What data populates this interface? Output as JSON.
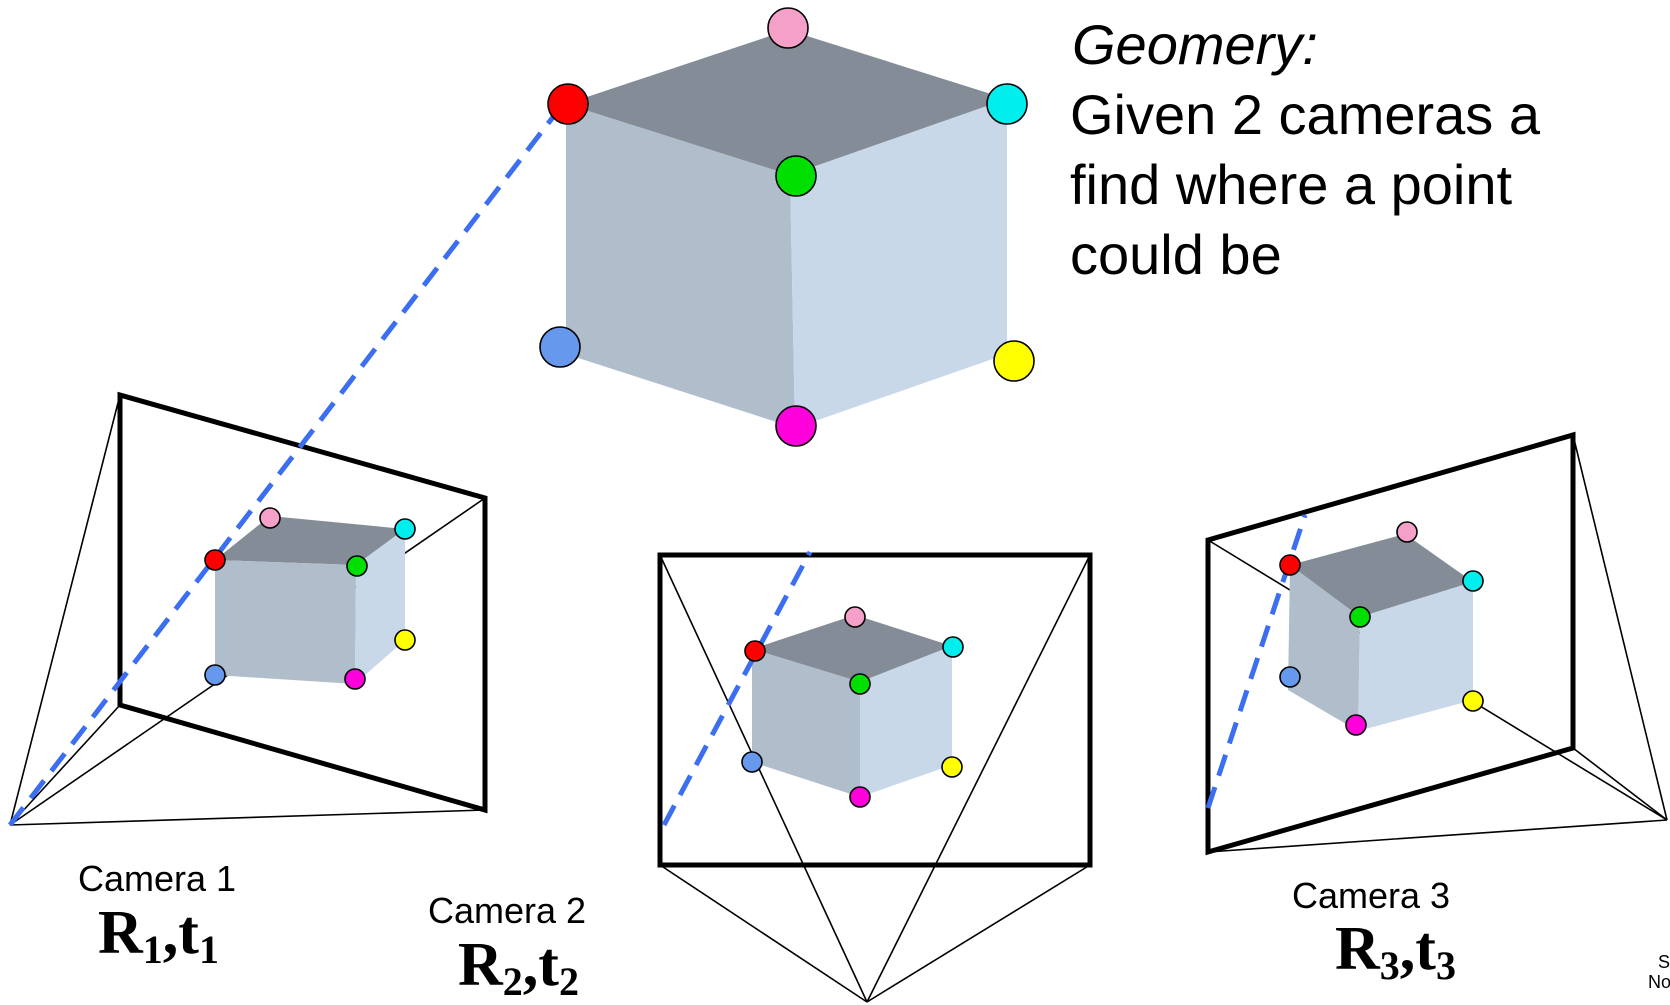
{
  "heading": "Geomery:",
  "body_lines": [
    "Given 2 cameras a",
    "find where a point",
    "could be"
  ],
  "cameras": [
    {
      "label": "Camera 1",
      "param": "R",
      "index_r": "1",
      "sep": ",",
      "param2": "t",
      "index_t": "1"
    },
    {
      "label": "Camera 2",
      "param": "R",
      "index_r": "2",
      "sep": ",",
      "param2": "t",
      "index_t": "2"
    },
    {
      "label": "Camera 3",
      "param": "R",
      "index_r": "3",
      "sep": ",",
      "param2": "t",
      "index_t": "3"
    }
  ],
  "corner_text": [
    "S",
    "No"
  ],
  "colors": {
    "cube_top": "#848d97",
    "cube_left": "#b0bdcb",
    "cube_right": "#c8d8e8",
    "ray": "#3b6ef0",
    "frame": "#000000",
    "points": {
      "pink": "#f4a0c8",
      "red": "#ff0000",
      "cyan": "#00eeee",
      "green": "#00e000",
      "blue": "#6699ee",
      "yellow": "#ffff00",
      "magenta": "#ff00dd"
    }
  }
}
